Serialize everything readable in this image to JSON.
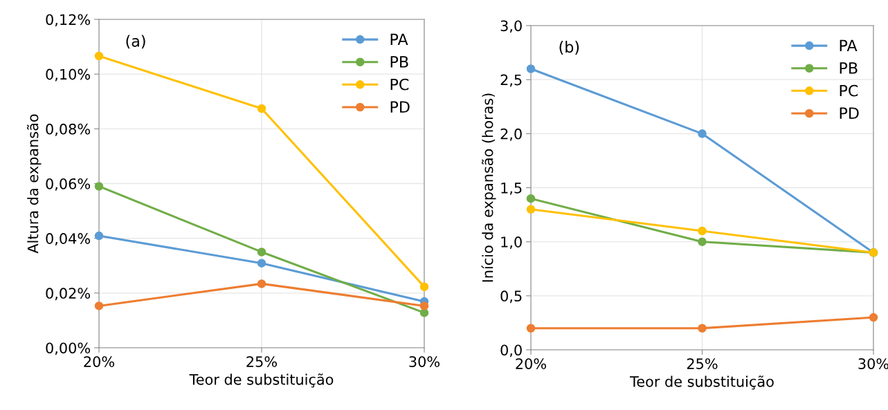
{
  "chart_data": [
    {
      "type": "line",
      "xlabel": "Teor de substituição",
      "ylabel": "Altura da expansão",
      "annotations": [
        "(a)"
      ],
      "x": [
        20,
        25,
        30
      ],
      "xlim": [
        20,
        30
      ],
      "xticks": [
        {
          "value": 20,
          "label": "20%"
        },
        {
          "value": 25,
          "label": "25%"
        },
        {
          "value": 30,
          "label": "30%"
        }
      ],
      "series": [
        {
          "name": "PA",
          "color": "#5b9bd5",
          "values": [
            0.0409,
            0.0309,
            0.0169
          ]
        },
        {
          "name": "PB",
          "color": "#70ad47",
          "values": [
            0.059,
            0.035,
            0.0128
          ]
        },
        {
          "name": "PC",
          "color": "#ffc000",
          "values": [
            0.1066,
            0.0874,
            0.0223
          ]
        },
        {
          "name": "PD",
          "color": "#ed7d31",
          "values": [
            0.0153,
            0.0234,
            0.0153
          ]
        }
      ],
      "ylim": [
        0,
        0.12
      ],
      "yticks": [
        {
          "value": 0,
          "label": "0,00%"
        },
        {
          "value": 0.02,
          "label": "0,02%"
        },
        {
          "value": 0.04,
          "label": "0,04%"
        },
        {
          "value": 0.06,
          "label": "0,06%"
        },
        {
          "value": 0.08,
          "label": "0,08%"
        },
        {
          "value": 0.1,
          "label": "0,10%"
        },
        {
          "value": 0.12,
          "label": "0,12%"
        }
      ],
      "grid": true,
      "legend": "top right",
      "marker": "circle",
      "line_style": "solid"
    },
    {
      "type": "line",
      "xlabel": "Teor de substituição",
      "ylabel": "Início da expansão (horas)",
      "annotations": [
        "(b)"
      ],
      "x": [
        20,
        25,
        30
      ],
      "xlim": [
        20,
        30
      ],
      "xticks": [
        {
          "value": 20,
          "label": "20%"
        },
        {
          "value": 25,
          "label": "25%"
        },
        {
          "value": 30,
          "label": "30%"
        }
      ],
      "series": [
        {
          "name": "PA",
          "color": "#5b9bd5",
          "values": [
            2.6,
            2.0,
            0.9
          ]
        },
        {
          "name": "PB",
          "color": "#70ad47",
          "values": [
            1.4,
            1.0,
            0.9
          ]
        },
        {
          "name": "PC",
          "color": "#ffc000",
          "values": [
            1.3,
            1.1,
            0.9
          ]
        },
        {
          "name": "PD",
          "color": "#ed7d31",
          "values": [
            0.2,
            0.2,
            0.3
          ]
        }
      ],
      "ylim": [
        0,
        3.0
      ],
      "yticks": [
        {
          "value": 0,
          "label": "0,0"
        },
        {
          "value": 0.5,
          "label": "0,5"
        },
        {
          "value": 1.0,
          "label": "1,0"
        },
        {
          "value": 1.5,
          "label": "1,5"
        },
        {
          "value": 2.0,
          "label": "2,0"
        },
        {
          "value": 2.5,
          "label": "2,5"
        },
        {
          "value": 3.0,
          "label": "3,0"
        }
      ],
      "grid": true,
      "legend": "top right",
      "marker": "circle",
      "line_style": "solid"
    }
  ]
}
